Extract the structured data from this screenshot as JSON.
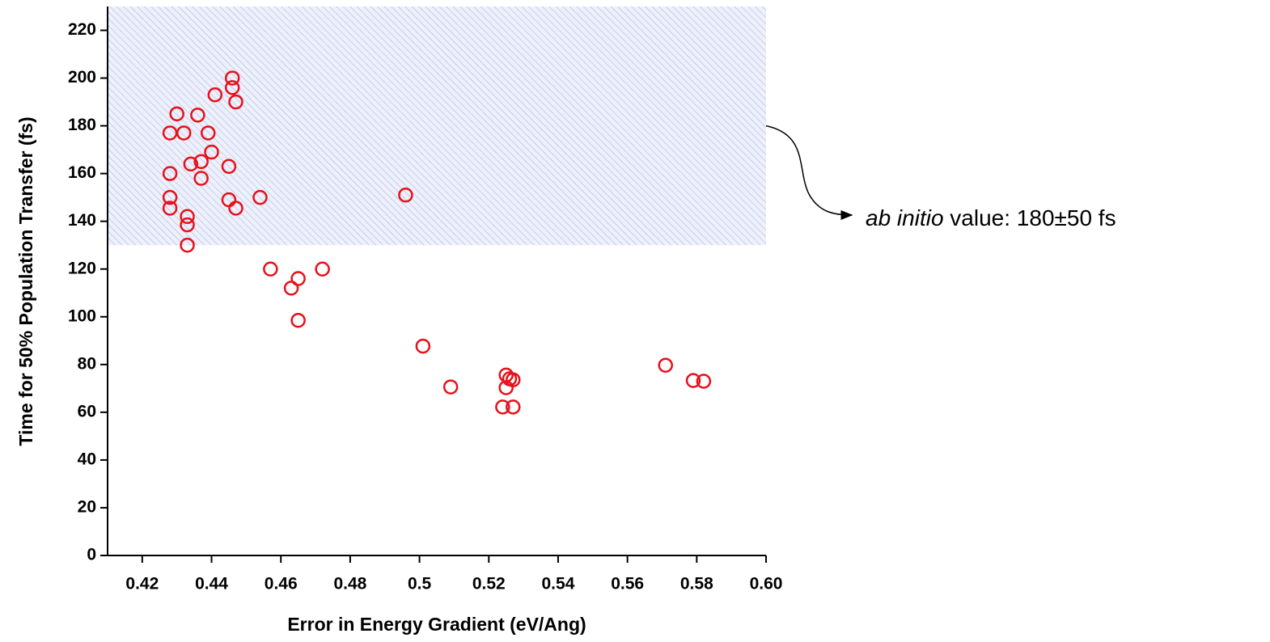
{
  "chart_data": {
    "type": "scatter",
    "x_label": "Error in Energy Gradient (eV/Ang)",
    "y_label": "Time for 50% Population Transfer (fs)",
    "annotation": {
      "italic": "ab initio",
      "text": "value:  180±50 fs"
    },
    "shaded_band": [
      130,
      230
    ],
    "color": "#e8101a",
    "xlim": [
      0.41,
      0.6
    ],
    "ylim": [
      0,
      230
    ],
    "xticks": [
      0.42,
      0.44,
      0.46,
      0.48,
      0.5,
      0.52,
      0.54,
      0.56,
      0.58,
      {
        "value": 0.6,
        "label": "0.60"
      }
    ],
    "yticks": [
      0,
      20,
      40,
      60,
      80,
      100,
      120,
      140,
      160,
      180,
      200,
      220
    ],
    "x": [
      0.43,
      0.428,
      0.432,
      0.436,
      0.441,
      0.446,
      0.446,
      0.447,
      0.439,
      0.44,
      0.434,
      0.437,
      0.437,
      0.445,
      0.428,
      0.428,
      0.428,
      0.433,
      0.433,
      0.433,
      0.445,
      0.447,
      0.454,
      0.496,
      0.457,
      0.472,
      0.463,
      0.465,
      0.465,
      0.501,
      0.509,
      0.525,
      0.526,
      0.527,
      0.525,
      0.524,
      0.527,
      0.571,
      0.579,
      0.582
    ],
    "values": [
      185,
      177,
      177,
      184.5,
      193,
      200,
      196,
      190,
      177,
      169,
      164,
      165,
      158,
      163,
      160,
      150,
      145.5,
      142,
      138.5,
      130,
      149,
      145.5,
      150,
      151,
      120,
      120,
      112,
      116,
      98.5,
      87.7,
      70.6,
      75.6,
      74,
      73.6,
      70.3,
      62.2,
      62.2,
      79.7,
      73.3,
      73
    ]
  }
}
